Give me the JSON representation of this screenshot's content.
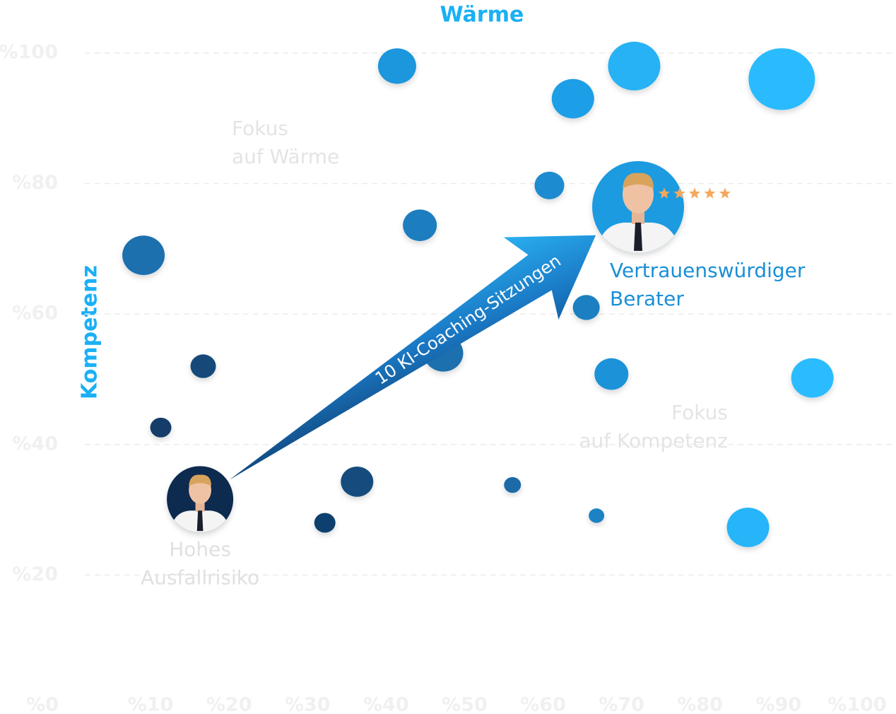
{
  "chart_data": {
    "type": "bubble",
    "title": "Wärme",
    "y_label": "Kompetenz",
    "xlim": [
      0,
      100
    ],
    "ylim": [
      0,
      100
    ],
    "xticks": [
      {
        "value": 0,
        "label": "%0"
      },
      {
        "value": 10,
        "label": "%10"
      },
      {
        "value": 20,
        "label": "%20"
      },
      {
        "value": 30,
        "label": "%30"
      },
      {
        "value": 40,
        "label": "%40"
      },
      {
        "value": 50,
        "label": "%50"
      },
      {
        "value": 60,
        "label": "%60"
      },
      {
        "value": 70,
        "label": "%70"
      },
      {
        "value": 80,
        "label": "%80"
      },
      {
        "value": 90,
        "label": "%90"
      },
      {
        "value": 100,
        "label": "%100"
      }
    ],
    "yticks": [
      {
        "value": 20,
        "label": "%20"
      },
      {
        "value": 40,
        "label": "%40"
      },
      {
        "value": 60,
        "label": "%60"
      },
      {
        "value": 80,
        "label": "%80"
      },
      {
        "value": 100,
        "label": "%100"
      }
    ],
    "grid": true,
    "x": [
      41.4,
      71.6,
      90.4,
      63.8,
      60.8,
      44.3,
      9.1,
      65.5,
      47.3,
      16.7,
      68.7,
      94.3,
      11.3,
      36.3,
      56.1,
      32.2,
      66.8,
      86.1
    ],
    "y": [
      98,
      98,
      96,
      93,
      79.7,
      73.6,
      69,
      61,
      54,
      52,
      50.8,
      50.2,
      42.6,
      34.3,
      33.8,
      28,
      29.1,
      27.3
    ],
    "sizes": [
      27,
      37,
      47,
      30,
      21,
      24,
      30,
      19,
      28,
      18,
      24,
      30,
      15,
      23,
      12,
      15,
      11,
      30
    ],
    "colors": [
      "#1e96dc",
      "#26b2f5",
      "#29bbff",
      "#1f9fe6",
      "#1c8bd0",
      "#1a7dbf",
      "#1b6fae",
      "#1b7fc2",
      "#1a6fae",
      "#134a7a",
      "#1d93d8",
      "#29bcff",
      "#123e69",
      "#134c7e",
      "#1a6aa6",
      "#10416e",
      "#1b82c4",
      "#27b5f8"
    ],
    "markers": [
      {
        "label": [
          "Hohes",
          "Ausfallrisiko"
        ],
        "x": 16.3,
        "y": 31.6,
        "color": "#0c2a4f"
      },
      {
        "label": [
          "Vertrauenswürdiger",
          "Berater"
        ],
        "x": 72.1,
        "y": 76.4,
        "color": "#1e9be0"
      }
    ],
    "arrow_label": "10 KI-Coaching-Sitzungen",
    "zones": [
      [
        "Fokus",
        "auf Wärme"
      ],
      [
        "Fokus",
        "auf Kompetenz"
      ]
    ]
  }
}
